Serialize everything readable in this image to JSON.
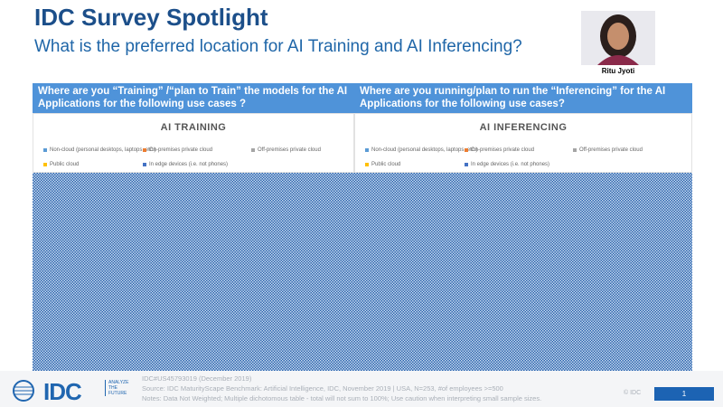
{
  "header": {
    "title": "IDC Survey Spotlight",
    "subtitle": "What is the preferred location for AI Training and AI Inferencing?",
    "speaker": "Ritu Jyoti"
  },
  "panels": [
    {
      "question": "Where are you “Training” /“plan to Train” the models for the AI Applications for the following use cases ?",
      "chart_title": "AI TRAINING",
      "legend": [
        "Non-cloud (personal desktops, laptops, etc.)",
        "On-premises private cloud",
        "Off-premises private cloud",
        "Public cloud",
        "In edge devices (i.e. not phones)"
      ]
    },
    {
      "question": "Where are you running/plan to run the “Inferencing” for the AI Applications for the following use cases?",
      "chart_title": "AI INFERENCING",
      "legend": [
        "Non-cloud (personal desktops, laptops, etc.)",
        "On-premises private cloud",
        "Off-premises private cloud",
        "Public cloud",
        "In edge devices (i.e. not phones)"
      ]
    }
  ],
  "footer": {
    "logo": "IDC",
    "tagline": "ANALYZE THE FUTURE",
    "doc_id": "IDC#US45793019 (December  2019)",
    "source": "Source: IDC MaturityScape  Benchmark:  Artificial  Intelligence,  IDC, November  2019 | USA, N=253, #of employees  >=500",
    "notes": "Notes: Data Not Weighted;  Multiple dichotomous table - total will not sum to 100%; Use caution when interpreting  small sample  sizes.",
    "copyright": "© IDC",
    "page": "1"
  }
}
